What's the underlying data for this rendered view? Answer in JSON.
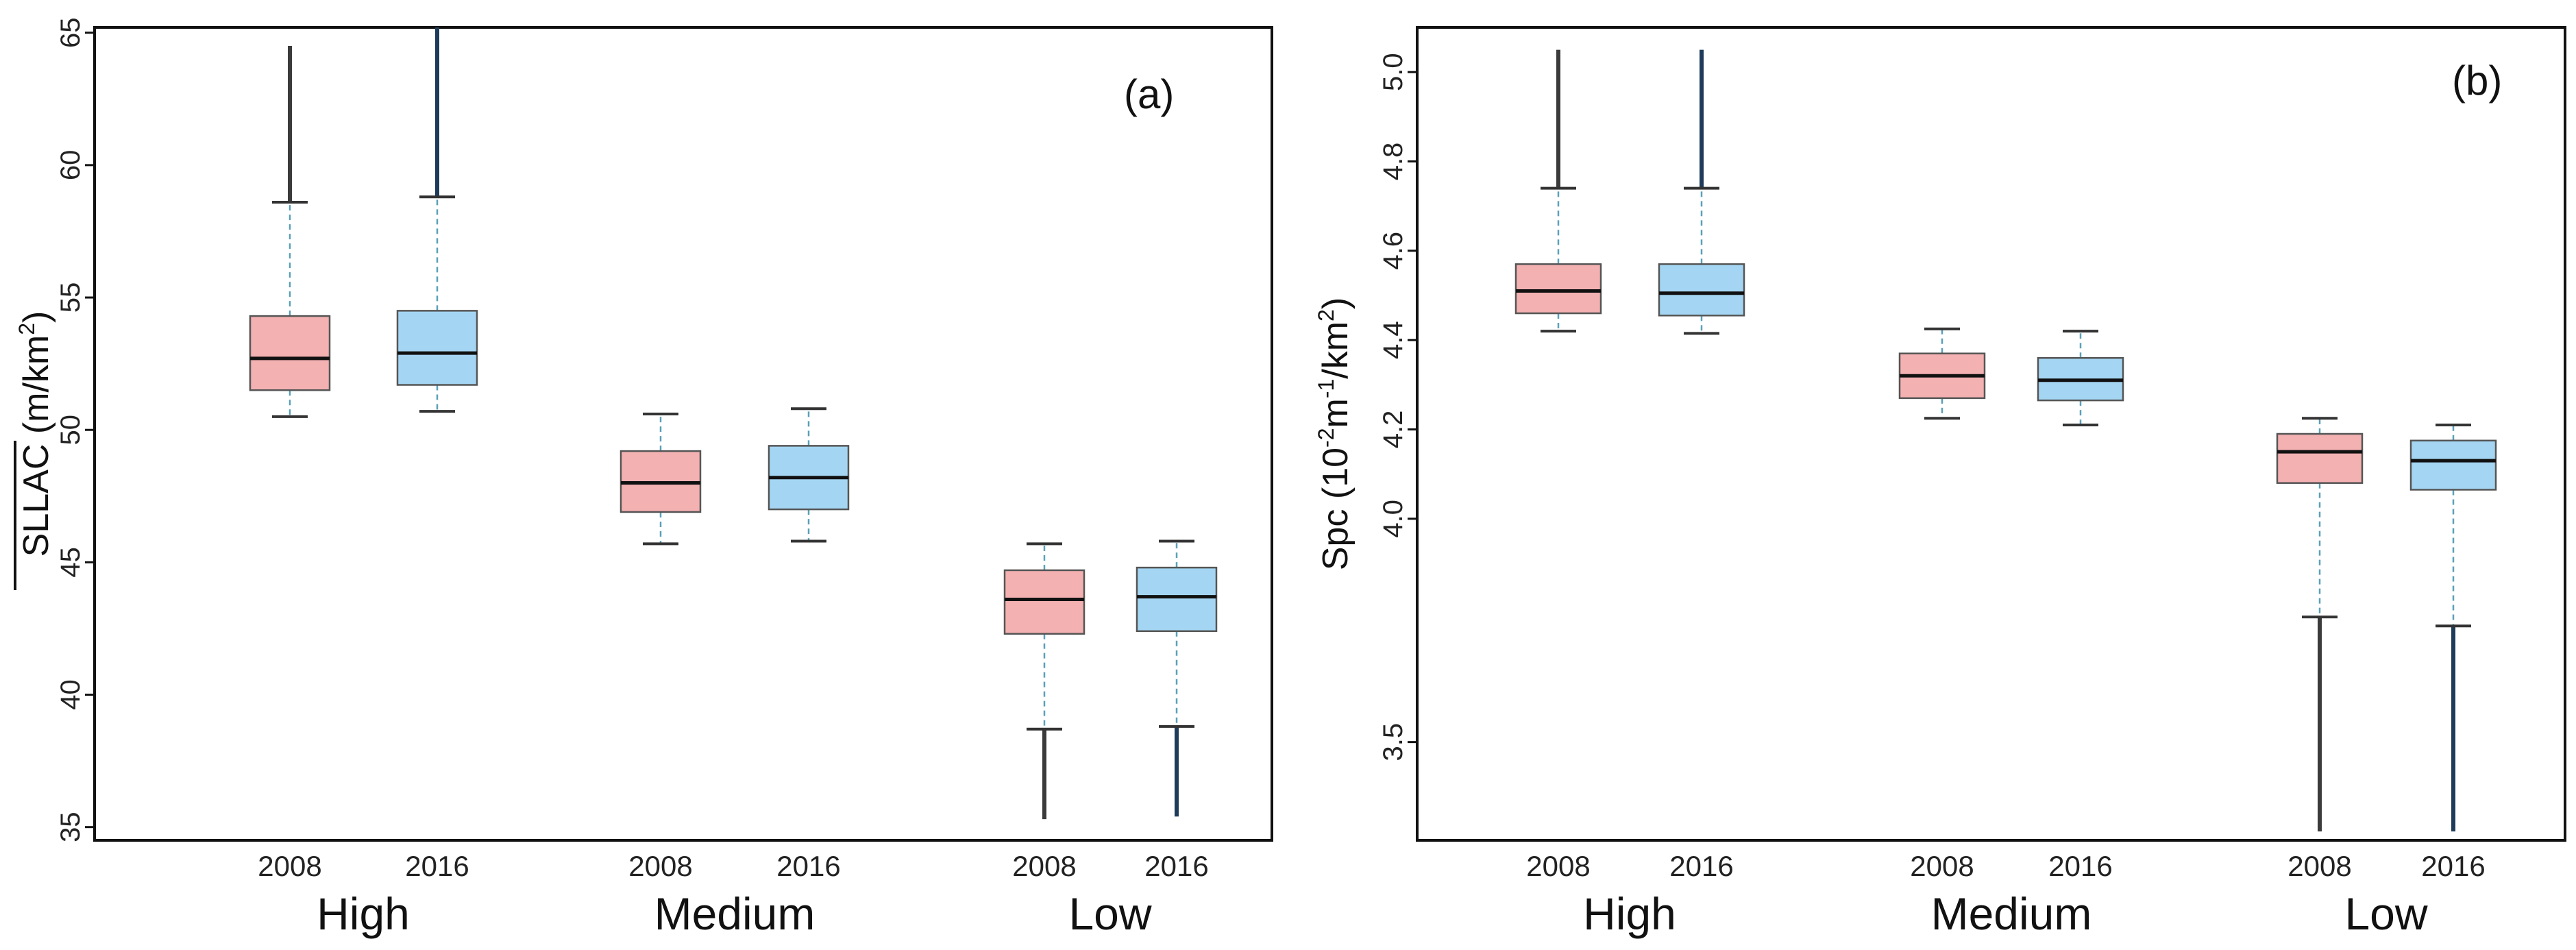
{
  "chart_data": [
    {
      "type": "box",
      "panel_label": "(a)",
      "ylabel": {
        "main": "SLLAC",
        "unit_open": " (m/km",
        "unit_sup": "2",
        "unit_close": ")",
        "overline": true
      },
      "ylim": [
        34.5,
        65.2
      ],
      "yticks": [
        35,
        40,
        45,
        50,
        55,
        60,
        65
      ],
      "ytick_labels": [
        "35",
        "40",
        "45",
        "50",
        "55",
        "60",
        "65"
      ],
      "groups": [
        "High",
        "Medium",
        "Low"
      ],
      "years": [
        "2008",
        "2016"
      ],
      "series_colors": {
        "2008": "#f4b1b2",
        "2016": "#a4d6f3"
      },
      "boxes": [
        {
          "group": "High",
          "year": "2008",
          "q1": 51.5,
          "median": 52.7,
          "q3": 54.3,
          "lower_whisker": 50.5,
          "upper_whisker": 58.6,
          "outlier_max": 64.5
        },
        {
          "group": "High",
          "year": "2016",
          "q1": 51.7,
          "median": 52.9,
          "q3": 54.5,
          "lower_whisker": 50.7,
          "upper_whisker": 58.8,
          "outlier_max": 65.2
        },
        {
          "group": "Medium",
          "year": "2008",
          "q1": 46.9,
          "median": 48.0,
          "q3": 49.2,
          "lower_whisker": 45.7,
          "upper_whisker": 50.6
        },
        {
          "group": "Medium",
          "year": "2016",
          "q1": 47.0,
          "median": 48.2,
          "q3": 49.4,
          "lower_whisker": 45.8,
          "upper_whisker": 50.8
        },
        {
          "group": "Low",
          "year": "2008",
          "q1": 42.3,
          "median": 43.6,
          "q3": 44.7,
          "lower_whisker": 38.7,
          "upper_whisker": 45.7,
          "outlier_min": 35.3
        },
        {
          "group": "Low",
          "year": "2016",
          "q1": 42.4,
          "median": 43.7,
          "q3": 44.8,
          "lower_whisker": 38.8,
          "upper_whisker": 45.8,
          "outlier_min": 35.4
        }
      ]
    },
    {
      "type": "box",
      "panel_label": "(b)",
      "ylabel": {
        "main": "Spc",
        "unit_open": " (10",
        "unit_sup1": "-2",
        "unit_mid": "m",
        "unit_sup2": "-1",
        "unit_mid2": "/km",
        "unit_sup3": "2",
        "unit_close": ")"
      },
      "ylim": [
        3.28,
        5.1
      ],
      "yticks": [
        3.5,
        4.0,
        4.2,
        4.4,
        4.6,
        4.8,
        5.0
      ],
      "ytick_labels": [
        "3.5",
        "4.0",
        "4.2",
        "4.4",
        "4.6",
        "4.8",
        "5.0"
      ],
      "groups": [
        "High",
        "Medium",
        "Low"
      ],
      "years": [
        "2008",
        "2016"
      ],
      "series_colors": {
        "2008": "#f4b1b2",
        "2016": "#a4d6f3"
      },
      "boxes": [
        {
          "group": "High",
          "year": "2008",
          "q1": 4.46,
          "median": 4.51,
          "q3": 4.57,
          "lower_whisker": 4.42,
          "upper_whisker": 4.74,
          "outlier_max": 5.05
        },
        {
          "group": "High",
          "year": "2016",
          "q1": 4.455,
          "median": 4.505,
          "q3": 4.57,
          "lower_whisker": 4.415,
          "upper_whisker": 4.74,
          "outlier_max": 5.05
        },
        {
          "group": "Medium",
          "year": "2008",
          "q1": 4.27,
          "median": 4.32,
          "q3": 4.37,
          "lower_whisker": 4.225,
          "upper_whisker": 4.425
        },
        {
          "group": "Medium",
          "year": "2016",
          "q1": 4.265,
          "median": 4.31,
          "q3": 4.36,
          "lower_whisker": 4.21,
          "upper_whisker": 4.42
        },
        {
          "group": "Low",
          "year": "2008",
          "q1": 4.08,
          "median": 4.15,
          "q3": 4.19,
          "lower_whisker": 3.78,
          "upper_whisker": 4.225,
          "outlier_min": 3.3
        },
        {
          "group": "Low",
          "year": "2016",
          "q1": 4.065,
          "median": 4.13,
          "q3": 4.175,
          "lower_whisker": 3.76,
          "upper_whisker": 4.21,
          "outlier_min": 3.3
        }
      ]
    }
  ]
}
